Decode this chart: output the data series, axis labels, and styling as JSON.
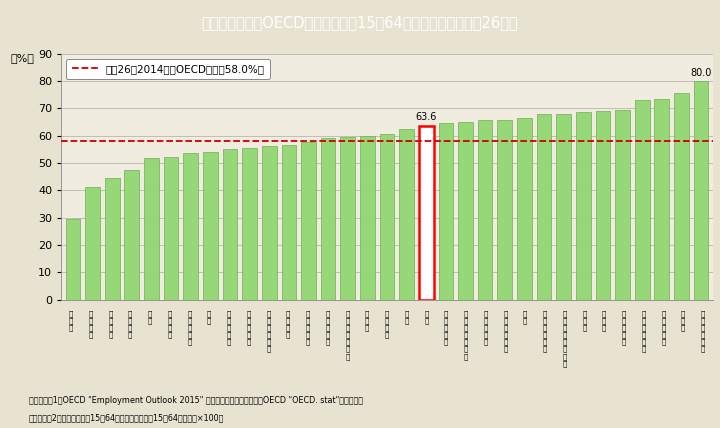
{
  "title": "Ｉ－２－２図　OECD諸国の女性（15～64歳）の就業率（平成26年）",
  "ylabel": "（%）",
  "ylim": [
    0,
    90
  ],
  "yticks": [
    0,
    10,
    20,
    30,
    40,
    50,
    60,
    70,
    80,
    90
  ],
  "oecd_avg": 58.0,
  "oecd_avg_label": "平成26（2014）年OECD平均（58.0%）",
  "highlight_index": 18,
  "highlight_label": "63.6",
  "last_label": "80.0",
  "bar_color": "#96d878",
  "bar_edge_color": "#70b050",
  "highlight_bar_color": "#ffffff",
  "highlight_bar_edge": "#ff0000",
  "title_bg": "#4ab8c8",
  "title_color": "#ffffff",
  "bg_color": "#e8e3d0",
  "plot_bg_color": "#f0ece0",
  "note1": "（備考）　1．OECD \"Employment Outlook 2015\" より作成。ただし，チリはOECD \"OECD. stat\"より作成。",
  "note2": "　　　　　2．就業率は，「15～64歳就業者数」／「15～64歳人口」×100。",
  "categories": [
    "ト\nル\nコ",
    "ギ\nリ\nシ\nャ",
    "メ\nキ\nシ\nコ",
    "イ\nタ\nリ\nア",
    "チ\nリ",
    "ス\nペ\nイ\nン",
    "ス\nロ\nバ\nキ\nア",
    "韓\n国",
    "ポ\nー\nラ\nン\nド",
    "ハ\nン\nガ\nリ\nー",
    "ア\nイ\nル\nラ\nン\nド",
    "ベ\nル\nギ\nー",
    "ポ\nル\nト\nガ\nル",
    "ス\nロ\nベ\nニ\nア",
    "ル\nク\nセ\nン\nブ\nル\nク",
    "チ\nェ\nコ",
    "フ\nラ\nン\nス",
    "米\n国",
    "日\n本",
    "イ\nス\nラ\nエ\nル",
    "オ\nー\nス\nト\nラ\nリ\nア",
    "エ\nス\nト\nニ\nア",
    "オ\nー\nス\nト\nリ\nア",
    "英\n国",
    "フ\nィ\nン\nラ\nン\nド",
    "ニ\nュ\nー\nジ\nー\nラ\nン\nド",
    "カ\nナ\nダ",
    "ド\nイ\nツ",
    "デ\nン\nマ\nー\nク",
    "ス\nウ\nェ\nー\nデ\nン",
    "ノ\nル\nウ\nェ\nー",
    "ス\nイ\nス",
    "ア\nイ\nス\nラ\nン\nド"
  ],
  "values": [
    29.5,
    41.0,
    44.5,
    47.5,
    51.7,
    52.0,
    53.7,
    54.0,
    55.0,
    55.5,
    56.0,
    56.6,
    57.5,
    59.0,
    59.5,
    60.0,
    60.5,
    62.5,
    63.6,
    64.5,
    65.1,
    65.5,
    65.8,
    66.5,
    67.7,
    68.0,
    68.5,
    69.0,
    69.5,
    73.0,
    73.5,
    75.5,
    80.0
  ]
}
